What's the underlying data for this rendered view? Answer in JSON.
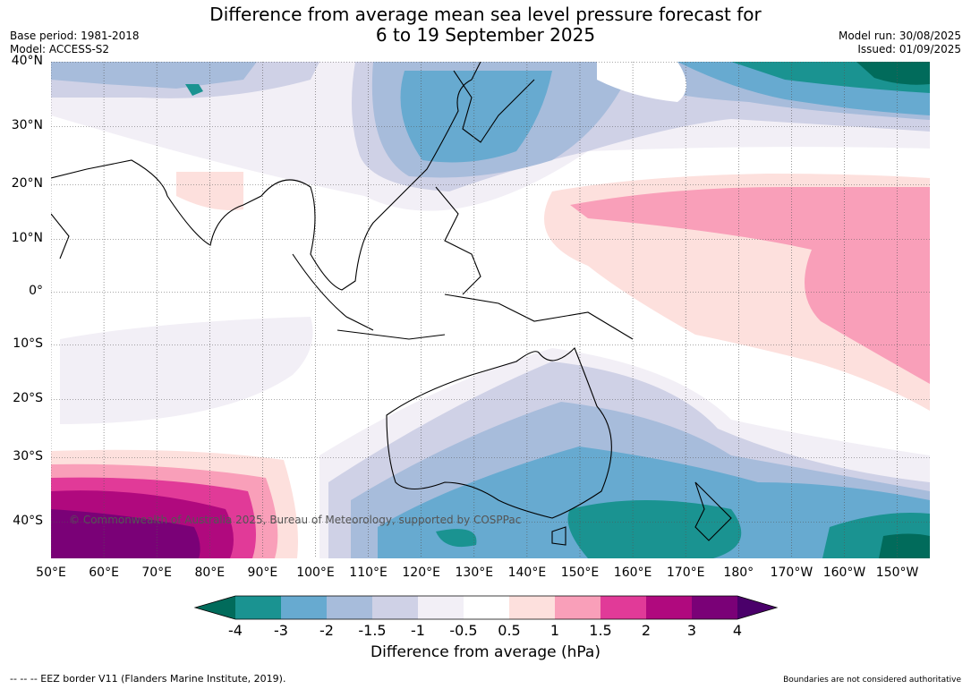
{
  "title_line1": "Difference from average mean sea level pressure forecast for",
  "title_line2": "6 to 19 September 2025",
  "base_period": "Base period: 1981-2018",
  "model": "Model: ACCESS-S2",
  "model_run": "Model run: 30/08/2025",
  "issued": "Issued: 01/09/2025",
  "credit": "© Commonwealth of Australia 2025, Bureau of Meteorology, supported by COSPPac",
  "lat_labels": [
    "40°N",
    "30°N",
    "20°N",
    "10°N",
    "0°",
    "10°S",
    "20°S",
    "30°S",
    "40°S"
  ],
  "lon_labels": [
    "50°E",
    "60°E",
    "70°E",
    "80°E",
    "90°E",
    "100°E",
    "110°E",
    "120°E",
    "130°E",
    "140°E",
    "150°E",
    "160°E",
    "170°E",
    "180°",
    "170°W",
    "160°W",
    "150°W"
  ],
  "colorbar": {
    "label": "Difference from average (hPa)",
    "ticks": [
      "-4",
      "-3",
      "-2",
      "-1.5",
      "-1",
      "-0.5",
      "0.5",
      "1",
      "1.5",
      "2",
      "3",
      "4"
    ],
    "colors": [
      "#1a9391",
      "#67aad0",
      "#a7bcdb",
      "#cfd1e6",
      "#f2eff6",
      "#ffffff",
      "#fde0dd",
      "#f99fb9",
      "#e13a98",
      "#b0097e",
      "#7a0177"
    ],
    "under_color": "#016b5b",
    "over_color": "#4a006a"
  },
  "footer_left": "--  --  -- EEZ border V11 (Flanders Marine Institute, 2019).",
  "footer_right": "Boundaries are not considered authoritative"
}
